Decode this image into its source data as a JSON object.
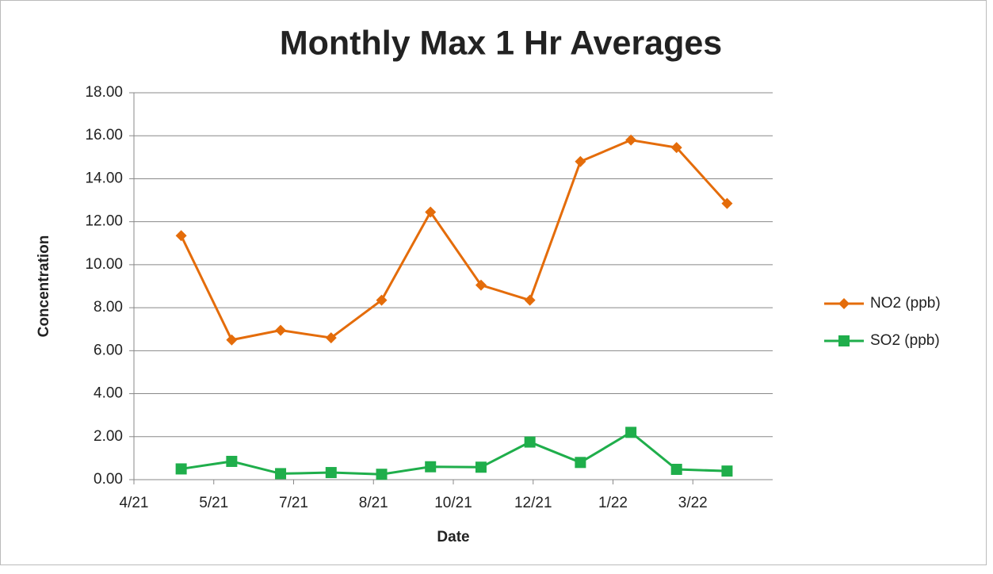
{
  "chart_data": {
    "type": "line",
    "title": "Monthly Max 1 Hr Averages",
    "x_label": "Date",
    "y_label": "Concentration",
    "x": [
      44316,
      44347,
      44377,
      44408,
      44439,
      44469,
      44500,
      44530,
      44561,
      44592,
      44620,
      44651
    ],
    "series": [
      {
        "name": "NO2 (ppb)",
        "color": "#e46c0a",
        "marker": "diamond",
        "values": [
          11.35,
          6.5,
          6.95,
          6.6,
          8.35,
          12.45,
          9.05,
          8.35,
          14.8,
          15.8,
          15.45,
          12.85
        ]
      },
      {
        "name": "SO2 (ppb)",
        "color": "#1fae4b",
        "marker": "square",
        "values": [
          0.5,
          0.85,
          0.28,
          0.33,
          0.25,
          0.6,
          0.58,
          1.75,
          0.8,
          2.2,
          0.48,
          0.4
        ]
      }
    ],
    "xlim": [
      44287,
      44679
    ],
    "xticks": [
      {
        "value": 44287,
        "label": "4/21"
      },
      {
        "value": 44336,
        "label": "5/21"
      },
      {
        "value": 44385,
        "label": "7/21"
      },
      {
        "value": 44434,
        "label": "8/21"
      },
      {
        "value": 44483,
        "label": "10/21"
      },
      {
        "value": 44532,
        "label": "12/21"
      },
      {
        "value": 44581,
        "label": "1/22"
      },
      {
        "value": 44630,
        "label": "3/22"
      }
    ],
    "ylim": [
      0,
      18
    ],
    "yticks": [
      {
        "value": 0,
        "label": "0.00"
      },
      {
        "value": 2,
        "label": "2.00"
      },
      {
        "value": 4,
        "label": "4.00"
      },
      {
        "value": 6,
        "label": "6.00"
      },
      {
        "value": 8,
        "label": "8.00"
      },
      {
        "value": 10,
        "label": "10.00"
      },
      {
        "value": 12,
        "label": "12.00"
      },
      {
        "value": 14,
        "label": "14.00"
      },
      {
        "value": 16,
        "label": "16.00"
      },
      {
        "value": 18,
        "label": "18.00"
      }
    ],
    "grid": true,
    "legend": "right"
  }
}
